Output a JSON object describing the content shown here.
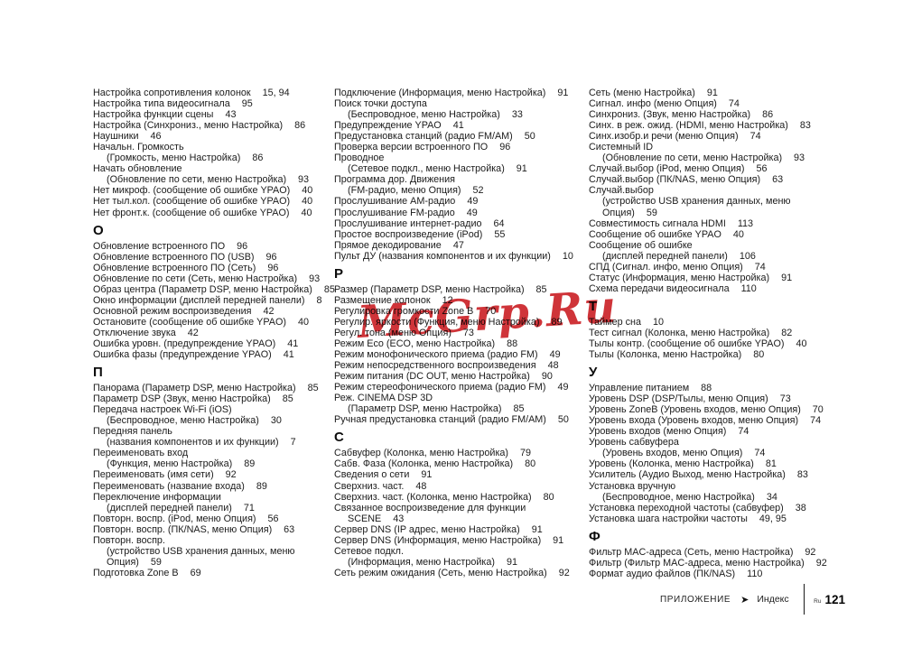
{
  "watermark": {
    "text": "McGrp.Ru",
    "color": "#c9181d"
  },
  "footer": {
    "section": "ПРИЛОЖЕНИЕ",
    "arrow": "➤",
    "page_label": "Индекс",
    "language": "Ru",
    "page_number": "121"
  },
  "index": {
    "columns": [
      {
        "sections": [
          {
            "header": "",
            "lines": [
              {
                "t": "Настройка сопротивления колонок",
                "n": "15, 94"
              },
              {
                "t": "Настройка типа видеосигнала",
                "n": "95"
              },
              {
                "t": "Настройка функции сцены",
                "n": "43"
              },
              {
                "t": "Настройка (Синхрониз., меню Настройка)",
                "n": "86"
              },
              {
                "t": "Наушники",
                "n": "46"
              },
              {
                "t": "Начальн. Громкость"
              },
              {
                "t": "(Громкость, меню Настройка)",
                "n": "86",
                "i": 1
              },
              {
                "t": "Начать обновление"
              },
              {
                "t": "(Обновление по сети, меню Настройка)",
                "n": "93",
                "i": 1
              },
              {
                "t": "Нет микроф. (сообщение об ошибке YPAO)",
                "n": "40"
              },
              {
                "t": "Нет тыл.кол. (сообщение об ошибке YPAO)",
                "n": "40"
              },
              {
                "t": "Нет фронт.к. (сообщение об ошибке YPAO)",
                "n": "40"
              }
            ]
          },
          {
            "header": "О",
            "lines": [
              {
                "t": "Обновление встроенного ПО",
                "n": "96"
              },
              {
                "t": "Обновление встроенного ПО (USB)",
                "n": "96"
              },
              {
                "t": "Обновление встроенного ПО (Сеть)",
                "n": "96"
              },
              {
                "t": "Обновление по сети (Сеть, меню Настройка)",
                "n": "93"
              },
              {
                "t": "Образ центра (Параметр DSP, меню Настройка)",
                "n": "85"
              },
              {
                "t": "Окно информации (дисплей передней панели)",
                "n": "8"
              },
              {
                "t": "Основной режим воспроизведения",
                "n": "42"
              },
              {
                "t": "Остановите (сообщение об ошибке YPAO)",
                "n": "40"
              },
              {
                "t": "Отключение звука",
                "n": "42"
              },
              {
                "t": "Ошибка уровн. (предупреждение YPAO)",
                "n": "41"
              },
              {
                "t": "Ошибка фазы (предупреждение YPAO)",
                "n": "41"
              }
            ]
          },
          {
            "header": "П",
            "lines": [
              {
                "t": "Панорама (Параметр DSP, меню Настройка)",
                "n": "85"
              },
              {
                "t": "Параметр DSP (Звук, меню Настройка)",
                "n": "85"
              },
              {
                "t": "Передача настроек Wi-Fi (iOS)"
              },
              {
                "t": "(Беспроводное, меню Настройка)",
                "n": "30",
                "i": 1
              },
              {
                "t": "Передняя панель"
              },
              {
                "t": "(названия компонентов и их функции)",
                "n": "7",
                "i": 1
              },
              {
                "t": "Переименовать вход"
              },
              {
                "t": "(Функция, меню Настройка)",
                "n": "89",
                "i": 1
              },
              {
                "t": "Переименовать (имя сети)",
                "n": "92"
              },
              {
                "t": "Переименовать (название входа)",
                "n": "89"
              },
              {
                "t": "Переключение информации"
              },
              {
                "t": "(дисплей передней панели)",
                "n": "71",
                "i": 1
              },
              {
                "t": "Повторн. воспр. (iPod, меню Опция)",
                "n": "56"
              },
              {
                "t": "Повторн. воспр. (ПК/NAS, меню Опция)",
                "n": "63"
              },
              {
                "t": "Повторн. воспр."
              },
              {
                "t": "(устройство USB хранения данных, меню",
                "i": 1
              },
              {
                "t": "Опция)",
                "n": "59",
                "i": 1
              },
              {
                "t": "Подготовка Zone B",
                "n": "69"
              }
            ]
          }
        ]
      },
      {
        "sections": [
          {
            "header": "",
            "lines": [
              {
                "t": "Подключение (Информация, меню Настройка)",
                "n": "91"
              },
              {
                "t": "Поиск точки доступа"
              },
              {
                "t": "(Беспроводное, меню Настройка)",
                "n": "33",
                "i": 1
              },
              {
                "t": "Предупреждение YPAO",
                "n": "41"
              },
              {
                "t": "Предустановка станций (радио FM/AM)",
                "n": "50"
              },
              {
                "t": "Проверка версии встроенного ПО",
                "n": "96"
              },
              {
                "t": "Проводное"
              },
              {
                "t": "(Сетевое подкл., меню Настройка)",
                "n": "91",
                "i": 1
              },
              {
                "t": "Программа дор. Движения"
              },
              {
                "t": "(FM-радио, меню Опция)",
                "n": "52",
                "i": 1
              },
              {
                "t": "Прослушивание AM-радио",
                "n": "49"
              },
              {
                "t": "Прослушивание FM-радио",
                "n": "49"
              },
              {
                "t": "Прослушивание интернет-радио",
                "n": "64"
              },
              {
                "t": "Простое воспроизведение (iPod)",
                "n": "55"
              },
              {
                "t": "Прямое декодирование",
                "n": "47"
              },
              {
                "t": "Пульт ДУ (названия компонентов и их функции)",
                "n": "10"
              }
            ]
          },
          {
            "header": "Р",
            "lines": [
              {
                "t": "Размер (Параметр DSP, меню Настройка)",
                "n": "85"
              },
              {
                "t": "Размещение колонок",
                "n": "12"
              },
              {
                "t": "Регулировка громкости Zone B",
                "n": "70"
              },
              {
                "t": "Регулир. яркости (Функция, меню Настройка)",
                "n": "89"
              },
              {
                "t": "Регул. тона (меню Опция)",
                "n": "73"
              },
              {
                "t": "Режим Eco (ECO, меню Настройка)",
                "n": "88"
              },
              {
                "t": "Режим монофонического приема (радио FM)",
                "n": "49"
              },
              {
                "t": "Режим непосредственного воспроизведения",
                "n": "48"
              },
              {
                "t": "Режим питания (DC OUT, меню Настройка)",
                "n": "90"
              },
              {
                "t": "Режим стереофонического приема (радио FM)",
                "n": "49"
              },
              {
                "t": "Реж. CINEMA DSP 3D"
              },
              {
                "t": "(Параметр DSP, меню Настройка)",
                "n": "85",
                "i": 1
              },
              {
                "t": "Ручная предустановка станций (радио FM/AM)",
                "n": "50"
              }
            ]
          },
          {
            "header": "С",
            "lines": [
              {
                "t": "Сабвуфер (Колонка, меню Настройка)",
                "n": "79"
              },
              {
                "t": "Сабв. Фаза (Колонка, меню Настройка)",
                "n": "80"
              },
              {
                "t": "Сведения о сети",
                "n": "91"
              },
              {
                "t": "Сверхниз. част.",
                "n": "48"
              },
              {
                "t": "Сверхниз. част. (Колонка, меню Настройка)",
                "n": "80"
              },
              {
                "t": "Связанное воспроизведение для функции"
              },
              {
                "t": "SCENE",
                "n": "43",
                "i": 1
              },
              {
                "t": "Сервер DNS (IP адрес, меню Настройка)",
                "n": "91"
              },
              {
                "t": "Сервер DNS (Информация, меню Настройка)",
                "n": "91"
              },
              {
                "t": "Сетевое подкл."
              },
              {
                "t": "(Информация, меню Настройка)",
                "n": "91",
                "i": 1
              },
              {
                "t": "Сеть режим ожидания (Сеть, меню Настройка)",
                "n": "92"
              }
            ]
          }
        ]
      },
      {
        "sections": [
          {
            "header": "",
            "lines": [
              {
                "t": "Сеть (меню Настройка)",
                "n": "91"
              },
              {
                "t": "Сигнал. инфо (меню Опция)",
                "n": "74"
              },
              {
                "t": "Синхрониз. (Звук, меню Настройка)",
                "n": "86"
              },
              {
                "t": "Синх. в реж. ожид. (HDMI, меню Настройка)",
                "n": "83"
              },
              {
                "t": "Синх.изобр.и речи (меню Опция)",
                "n": "74"
              },
              {
                "t": "Системный ID"
              },
              {
                "t": "(Обновление по сети, меню Настройка)",
                "n": "93",
                "i": 1
              },
              {
                "t": "Случай.выбор (iPod, меню Опция)",
                "n": "56"
              },
              {
                "t": "Случай.выбор (ПК/NAS, меню Опция)",
                "n": "63"
              },
              {
                "t": "Случай.выбор"
              },
              {
                "t": "(устройство USB хранения данных, меню",
                "i": 1
              },
              {
                "t": "Опция)",
                "n": "59",
                "i": 1
              },
              {
                "t": "Совместимость сигнала HDMI",
                "n": "113"
              },
              {
                "t": "Сообщение об ошибке YPAO",
                "n": "40"
              },
              {
                "t": "Сообщение об ошибке"
              },
              {
                "t": "(дисплей передней панели)",
                "n": "106",
                "i": 1
              },
              {
                "t": "СПД (Сигнал. инфо, меню Опция)",
                "n": "74"
              },
              {
                "t": "Статус (Информация, меню Настройка)",
                "n": "91"
              },
              {
                "t": "Схема передачи видеосигнала",
                "n": "110"
              }
            ]
          },
          {
            "header": "Т",
            "lines": [
              {
                "t": "Таймер сна",
                "n": "10"
              },
              {
                "t": "Тест сигнал (Колонка, меню Настройка)",
                "n": "82"
              },
              {
                "t": "Тылы контр. (сообщение об ошибке YPAO)",
                "n": "40"
              },
              {
                "t": "Тылы (Колонка, меню Настройка)",
                "n": "80"
              }
            ]
          },
          {
            "header": "У",
            "lines": [
              {
                "t": "Управление питанием",
                "n": "88"
              },
              {
                "t": "Уровень DSP (DSP/Тылы, меню Опция)",
                "n": "73"
              },
              {
                "t": "Уровень ZoneB (Уровень входов, меню Опция)",
                "n": "70"
              },
              {
                "t": "Уровень входа (Уровень входов, меню Опция)",
                "n": "74"
              },
              {
                "t": "Уровень входов (меню Опция)",
                "n": "74"
              },
              {
                "t": "Уровень сабвуфера"
              },
              {
                "t": "(Уровень входов, меню Опция)",
                "n": "74",
                "i": 1
              },
              {
                "t": "Уровень (Колонка, меню Настройка)",
                "n": "81"
              },
              {
                "t": "Усилитель (Аудио Выход, меню Настройка)",
                "n": "83"
              },
              {
                "t": "Установка вручную"
              },
              {
                "t": "(Беспроводное, меню Настройка)",
                "n": "34",
                "i": 1
              },
              {
                "t": "Установка переходной частоты (сабвуфер)",
                "n": "38"
              },
              {
                "t": "Установка шага настройки частоты",
                "n": "49, 95"
              }
            ]
          },
          {
            "header": "Ф",
            "lines": [
              {
                "t": "Фильтр MAC-адреса (Сеть, меню Настройка)",
                "n": "92"
              },
              {
                "t": "Фильтр (Фильтр MAC-адреса, меню Настройка)",
                "n": "92"
              },
              {
                "t": "Формат аудио файлов (ПК/NAS)",
                "n": "110"
              }
            ]
          }
        ]
      }
    ]
  }
}
